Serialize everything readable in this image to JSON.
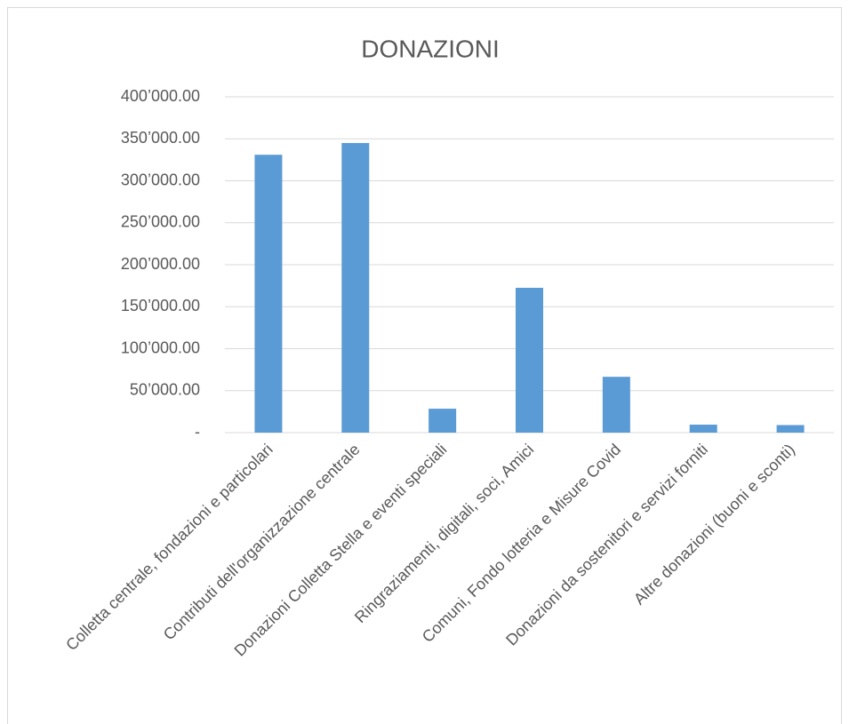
{
  "chart_data": {
    "type": "bar",
    "title": "DONAZIONI",
    "categories": [
      "Colletta centrale, fondazioni e particolari",
      "Contributi dell'organizzazione centrale",
      "Donazioni Colletta Stella e eventi speciali",
      "Ringraziamenti, digitali, soci, Amici",
      "Comuni, Fondo lotteria e Misure Covid",
      "Donazioni da sostenitori e servizi forniti",
      "Altre donazioni (buoni e sconti)"
    ],
    "values": [
      331000,
      345000,
      28500,
      172500,
      66500,
      9500,
      9000
    ],
    "color": "#5b9bd5",
    "ylim": [
      0,
      400000
    ],
    "yticks": [
      {
        "value": 0,
        "label": "-"
      },
      {
        "value": 50000,
        "label": "50’000.00"
      },
      {
        "value": 100000,
        "label": "100’000.00"
      },
      {
        "value": 150000,
        "label": "150’000.00"
      },
      {
        "value": 200000,
        "label": "200’000.00"
      },
      {
        "value": 250000,
        "label": "250’000.00"
      },
      {
        "value": 300000,
        "label": "300’000.00"
      },
      {
        "value": 350000,
        "label": "350’000.00"
      },
      {
        "value": 400000,
        "label": "400’000.00"
      }
    ],
    "grid": true
  }
}
